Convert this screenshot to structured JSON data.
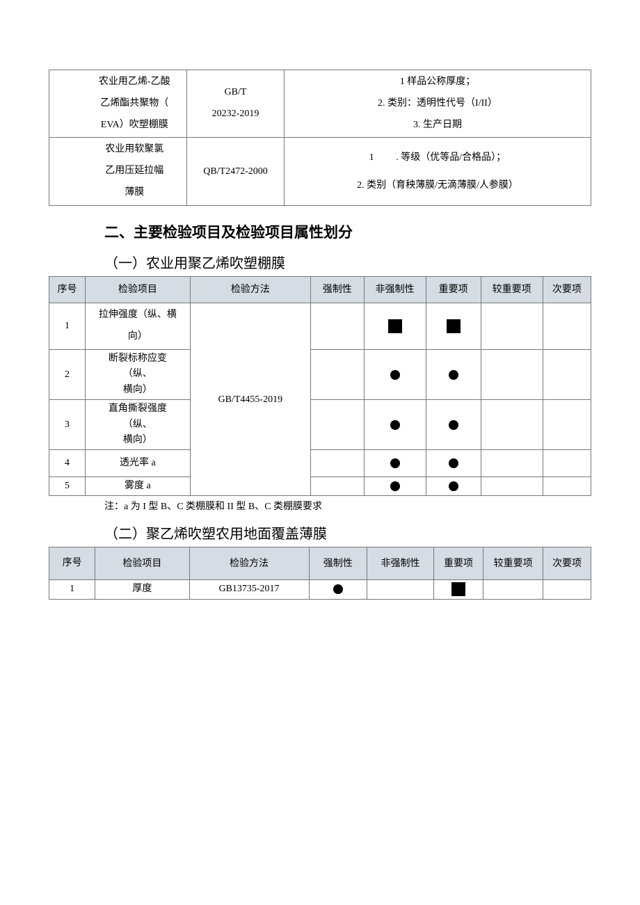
{
  "table1": {
    "rows": [
      {
        "c1": "",
        "c2": "农业用乙烯-乙酸\n乙烯酯共聚物（\nEVA）吹塑棚膜",
        "c3": "GB/T\n20232-2019",
        "c4": "1 样品公称厚度；\n2. 类别：透明性代号（I/II）\n3. 生产日期"
      },
      {
        "c1": "",
        "c2": "农业用软聚氯\n乙用压延拉幅\n薄膜",
        "c3": "QB/T2472-2000",
        "c4_line1": "1　　 . 等级（优等品/合格品）；",
        "c4_line2": "2. 类别（育秧薄膜/无滴薄膜/人参膜）"
      }
    ]
  },
  "heading2": "二、主要检验项目及检验项目属性划分",
  "section1_title": "（一）农业用聚乙烯吹塑棚膜",
  "table2": {
    "headers": [
      "序号",
      "检验项目",
      "检验方法",
      "强制性",
      "非强制性",
      "重要项",
      "较重要项",
      "次要项"
    ],
    "method": "GB/T4455-2019",
    "rows": [
      {
        "no": "1",
        "item": "拉伸强度（纵、横\n向）",
        "marks": [
          "",
          "sq",
          "sq",
          "",
          ""
        ]
      },
      {
        "no": "2",
        "item": "断裂标称应变\n（纵、\n横向）",
        "marks": [
          "",
          "dot",
          "dot",
          "",
          ""
        ]
      },
      {
        "no": "3",
        "item": "直角撕裂强度\n（纵、\n横向）",
        "marks": [
          "",
          "dot",
          "dot",
          "",
          ""
        ]
      },
      {
        "no": "4",
        "item": "透光率 a",
        "marks": [
          "",
          "dot",
          "dot",
          "",
          ""
        ]
      },
      {
        "no": "5",
        "item": "雾度 a",
        "marks": [
          "",
          "dot",
          "dot",
          "",
          ""
        ]
      }
    ]
  },
  "note1": "注：a 为 I 型 B、C 类棚膜和 II 型 B、C 类棚膜要求",
  "section2_title": "（二）聚乙烯吹塑农用地面覆盖薄膜",
  "table3": {
    "headers": [
      "序号",
      "检验项目",
      "检验方法",
      "强制性",
      "非强制性",
      "重要项",
      "较重要项",
      "次要项"
    ],
    "rows": [
      {
        "no": "1",
        "item": "厚度",
        "method": "GB13735-2017",
        "marks": [
          "dot",
          "",
          "sq",
          "",
          ""
        ]
      }
    ]
  },
  "colors": {
    "header_bg": "#d6dce4",
    "border": "#777777",
    "text": "#000000",
    "bg": "#ffffff"
  }
}
